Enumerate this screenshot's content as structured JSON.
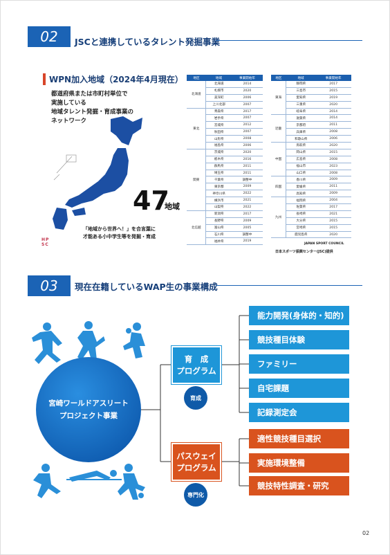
{
  "sections": [
    {
      "number": "02",
      "title": "JSCと連携しているタレント発掘事業"
    },
    {
      "number": "03",
      "title": "現在在籍しているWAP生の事業構成"
    }
  ],
  "wpn": {
    "heading": "WPN加入地域（2024年4月現在）",
    "description": [
      "都道府県または市町村単位で",
      "実施している",
      "地域タレント発掘・育成事業の",
      "ネットワーク"
    ],
    "count": "47",
    "count_unit": "地域",
    "slogan": [
      "「地域から世界へ！」を合言葉に",
      "才能ある小中学生等を発掘・育成"
    ],
    "logo": [
      "HP",
      "SC"
    ]
  },
  "table_header": [
    "地区",
    "地域",
    "事業開始年"
  ],
  "tables": [
    [
      {
        "region": "北海道",
        "rows": [
          [
            "北海道",
            "2014"
          ],
          [
            "札幌市",
            "2020"
          ],
          [
            "美深町",
            "2006"
          ],
          [
            "上川北部",
            "2007"
          ]
        ]
      },
      {
        "region": "東北",
        "rows": [
          [
            "青森県",
            "2017"
          ],
          [
            "岩手県",
            "2007"
          ],
          [
            "宮城県",
            "2012"
          ],
          [
            "秋田県",
            "2007"
          ],
          [
            "山形県",
            "2008"
          ],
          [
            "福島県",
            "2006"
          ]
        ]
      },
      {
        "region": "関東",
        "rows": [
          [
            "茨城県",
            "2020"
          ],
          [
            "栃木県",
            "2016"
          ],
          [
            "群馬県",
            "2011"
          ],
          [
            "埼玉県",
            "2011"
          ],
          [
            "千葉県",
            "調整中"
          ],
          [
            "東京都",
            "2009"
          ],
          [
            "神奈川県",
            "2022"
          ],
          [
            "横浜市",
            "2021"
          ],
          [
            "山梨県",
            "2022"
          ]
        ]
      },
      {
        "region": "北信越",
        "rows": [
          [
            "新潟県",
            "2017"
          ],
          [
            "長野県",
            "2009"
          ],
          [
            "富山県",
            "2005"
          ],
          [
            "石川県",
            "調整中"
          ],
          [
            "福井県",
            "2019"
          ]
        ]
      }
    ],
    [
      {
        "region": "東海",
        "rows": [
          [
            "静岡県",
            "2017"
          ],
          [
            "三島市",
            "2015"
          ],
          [
            "愛知県",
            "2019"
          ],
          [
            "三重県",
            "2020"
          ],
          [
            "岐阜県",
            "2014"
          ]
        ]
      },
      {
        "region": "近畿",
        "rows": [
          [
            "滋賀県",
            "2014"
          ],
          [
            "京都府",
            "2011"
          ],
          [
            "兵庫県",
            "2008"
          ],
          [
            "和歌山県",
            "2006"
          ]
        ]
      },
      {
        "region": "中国",
        "rows": [
          [
            "鳥取県",
            "2020"
          ],
          [
            "岡山県",
            "2015"
          ],
          [
            "広島県",
            "2008"
          ],
          [
            "福山市",
            "2023"
          ],
          [
            "山口県",
            "2008"
          ]
        ]
      },
      {
        "region": "四国",
        "rows": [
          [
            "香川県",
            "2009"
          ],
          [
            "愛媛県",
            "2011"
          ],
          [
            "高知県",
            "2009"
          ]
        ]
      },
      {
        "region": "九州",
        "rows": [
          [
            "福岡県",
            "2004"
          ],
          [
            "佐賀県",
            "2017"
          ],
          [
            "長崎県",
            "2021"
          ],
          [
            "大分県",
            "2015"
          ],
          [
            "宮崎県",
            "2015"
          ],
          [
            "鹿児島県",
            "2020"
          ]
        ]
      }
    ]
  ],
  "credit": [
    "JAPAN SPORT COUNCIL",
    "日本スポーツ振興センター(JSC)提供"
  ],
  "diagram": {
    "center": [
      "宮崎ワールドアスリート",
      "プロジェクト事業"
    ],
    "programs": [
      {
        "name": [
          "育　成",
          "プログラム"
        ],
        "badge": "育成",
        "items": [
          "能力開発(身体的・知的)",
          "競技種目体験",
          "ファミリー",
          "自宅課題",
          "記録測定会"
        ]
      },
      {
        "name": [
          "パスウェイ",
          "プログラム"
        ],
        "badge": "専門化",
        "items": [
          "適性競技種目選択",
          "実施環境整備",
          "競技特性調査・研究"
        ]
      }
    ]
  },
  "page_number": "02"
}
